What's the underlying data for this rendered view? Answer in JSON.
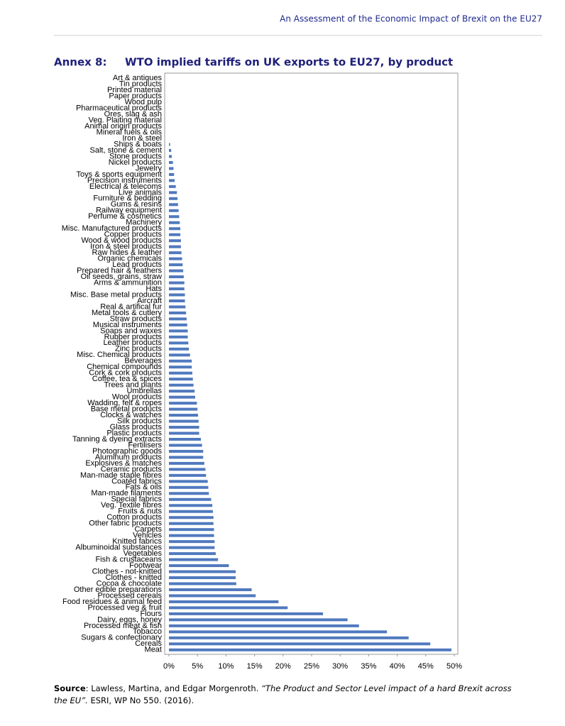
{
  "header": {
    "running_title": "An Assessment of the Economic Impact of Brexit on the EU27"
  },
  "annex": {
    "label": "Annex 8:",
    "title": "WTO implied tariffs on UK exports to EU27, by product"
  },
  "chart_data": {
    "type": "barh",
    "color": "#5079be",
    "categories": [
      "Art & antiques",
      "Tin products",
      "Printed material",
      "Paper products",
      "Wood pulp",
      "Pharmaceutical products",
      "Ores, slag & ash",
      "Veg. Plaiting material",
      "Animal origin products",
      "Mineral fuels & oils",
      "Iron & steel",
      "Ships & boats",
      "Salt, stone & cement",
      "Stone products",
      "Nickel products",
      "Jewelry",
      "Toys & sports equipment",
      "Precision instruments",
      "Electrical & telecoms",
      "Live animals",
      "Furniture & bedding",
      "Gums & resins",
      "Railway equipment",
      "Perfume & cosmetics",
      "Machinery",
      "Misc. Manufactured products",
      "Copper products",
      "Wood & wood products",
      "Iron & steel products",
      "Raw hides & leather",
      "Organic chemicals",
      "Lead products",
      "Prepared hair & feathers",
      "Oil seeds, grains, straw",
      "Arms & ammunition",
      "Hats",
      "Misc. Base metal products",
      "Aircraft",
      "Real & artifical fur",
      "Metal tools & cutlery",
      "Straw products",
      "Musical instruments",
      "Soaps and waxes",
      "Rubber products",
      "Leather products",
      "Zinc products",
      "Misc. Chemical products",
      "Beverages",
      "Chemical compounds",
      "Cork & cork products",
      "Coffee, tea & spices",
      "Trees and plants",
      "Umbrellas",
      "Wool products",
      "Wadding, felt & ropes",
      "Base metal products",
      "Clocks & watches",
      "Silk products",
      "Glass products",
      "Plastic products",
      "Tanning & dyeing extracts",
      "Fertilisers",
      "Photographic goods",
      "Aluminum products",
      "Explosives & matches",
      "Ceramic products",
      "Man-made staple fibres",
      "Coated fabrics",
      "Fats & oils",
      "Man-made filaments",
      "Special fabrics",
      "Veg. Textile fibres",
      "Fruits & nuts",
      "Cotton products",
      "Other fabric products",
      "Carpets",
      "Vehicles",
      "Knitted fabrics",
      "Albuminoidal substances",
      "Vegetables",
      "Fish & crustaceans",
      "Footwear",
      "Clothes - not-knitted",
      "Clothes - knitted",
      "Cocoa & chocolate",
      "Other edible preparations",
      "Processed cereals",
      "Food residues & animal feed",
      "Processed veg & fruit",
      "Flours",
      "Dairy, eggs, honey",
      "Processed meat & fish",
      "Tobacco",
      "Sugars & confectionary",
      "Cereals",
      "Meat"
    ],
    "values": [
      0,
      0,
      0,
      0,
      0,
      0,
      0,
      0,
      0,
      0,
      0,
      0.2,
      0.4,
      0.5,
      0.7,
      0.8,
      0.9,
      1.0,
      1.2,
      1.4,
      1.5,
      1.6,
      1.7,
      1.8,
      1.9,
      2.0,
      2.0,
      2.1,
      2.1,
      2.2,
      2.3,
      2.4,
      2.5,
      2.6,
      2.7,
      2.7,
      2.8,
      2.8,
      2.9,
      3.0,
      3.1,
      3.2,
      3.3,
      3.3,
      3.4,
      3.5,
      3.7,
      4.0,
      4.0,
      4.1,
      4.2,
      4.3,
      4.5,
      4.6,
      4.9,
      5.0,
      5.1,
      5.2,
      5.3,
      5.3,
      5.6,
      5.8,
      6.0,
      6.0,
      6.2,
      6.4,
      6.5,
      6.8,
      6.9,
      7.0,
      7.4,
      7.6,
      7.7,
      7.8,
      7.8,
      7.9,
      7.9,
      8.0,
      8.0,
      8.2,
      8.6,
      10.5,
      11.7,
      11.7,
      11.8,
      14.5,
      15.2,
      19.2,
      20.8,
      27.0,
      31.3,
      33.3,
      38.2,
      42.0,
      45.8,
      49.5
    ],
    "xlim": [
      0,
      50
    ],
    "xticks": [
      {
        "value": 0,
        "label": "0%"
      },
      {
        "value": 5,
        "label": "5%"
      },
      {
        "value": 10,
        "label": "10%"
      },
      {
        "value": 15,
        "label": "15%"
      },
      {
        "value": 20,
        "label": "20%"
      },
      {
        "value": 25,
        "label": "25%"
      },
      {
        "value": 30,
        "label": "30%"
      },
      {
        "value": 35,
        "label": "35%"
      },
      {
        "value": 40,
        "label": "40%"
      },
      {
        "value": 45,
        "label": "45%"
      },
      {
        "value": 50,
        "label": "50%"
      }
    ]
  },
  "source": {
    "label": "Source",
    "text": ": Lawless, Martina, and Edgar Morgenroth. ",
    "work": "“The Product and Sector Level impact of a hard Brexit across the EU”.",
    "publisher": " ESRI, WP No 550. (2016)."
  }
}
